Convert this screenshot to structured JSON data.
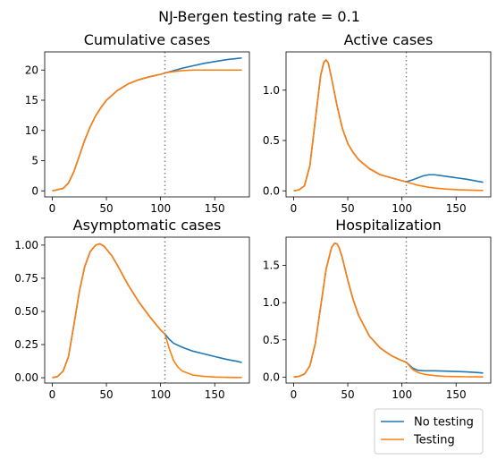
{
  "figure": {
    "suptitle": "NJ-Bergen testing rate = 0.1"
  },
  "legend": {
    "placement": "lower-right",
    "entries": [
      {
        "name": "No testing",
        "color": "#1f77b4"
      },
      {
        "name": "Testing",
        "color": "#ff7f0e"
      }
    ]
  },
  "chart_data": [
    {
      "type": "line",
      "title": "Cumulative cases",
      "xlim": [
        -7,
        182
      ],
      "ylim": [
        -1,
        23
      ],
      "xticks": [
        0,
        50,
        100,
        150
      ],
      "yticks": [
        0,
        5,
        10,
        15,
        20
      ],
      "vline": 104,
      "series": [
        {
          "name": "No testing",
          "color": "#1f77b4",
          "x": [
            0,
            10,
            15,
            20,
            25,
            30,
            35,
            40,
            45,
            50,
            60,
            70,
            80,
            90,
            100,
            104,
            110,
            120,
            130,
            140,
            150,
            160,
            170,
            175
          ],
          "y": [
            0,
            0.4,
            1.3,
            3.2,
            5.8,
            8.4,
            10.6,
            12.4,
            13.8,
            15.0,
            16.6,
            17.7,
            18.4,
            18.9,
            19.3,
            19.5,
            19.8,
            20.3,
            20.7,
            21.1,
            21.4,
            21.7,
            21.9,
            22.0
          ]
        },
        {
          "name": "Testing",
          "color": "#ff7f0e",
          "x": [
            0,
            10,
            15,
            20,
            25,
            30,
            35,
            40,
            45,
            50,
            60,
            70,
            80,
            90,
            100,
            104,
            110,
            120,
            130,
            140,
            150,
            160,
            170,
            175
          ],
          "y": [
            0,
            0.4,
            1.3,
            3.2,
            5.8,
            8.4,
            10.6,
            12.4,
            13.8,
            15.0,
            16.6,
            17.7,
            18.4,
            18.9,
            19.3,
            19.5,
            19.7,
            19.9,
            20.0,
            20.0,
            20.0,
            20.0,
            20.0,
            20.0
          ]
        }
      ]
    },
    {
      "type": "line",
      "title": "Active cases",
      "xlim": [
        -7,
        182
      ],
      "ylim": [
        -0.06,
        1.38
      ],
      "xticks": [
        0,
        50,
        100,
        150
      ],
      "yticks": [
        0.0,
        0.5,
        1.0
      ],
      "ytick_labels": [
        "0.0",
        "0.5",
        "1.0"
      ],
      "vline": 104,
      "series": [
        {
          "name": "No testing",
          "color": "#1f77b4",
          "x": [
            0,
            5,
            10,
            15,
            20,
            25,
            28,
            30,
            32,
            35,
            40,
            45,
            50,
            55,
            60,
            70,
            80,
            90,
            100,
            104,
            110,
            115,
            120,
            125,
            130,
            140,
            150,
            160,
            170,
            175
          ],
          "y": [
            0,
            0.01,
            0.05,
            0.25,
            0.7,
            1.15,
            1.28,
            1.3,
            1.27,
            1.12,
            0.85,
            0.62,
            0.47,
            0.38,
            0.31,
            0.22,
            0.16,
            0.13,
            0.1,
            0.09,
            0.11,
            0.13,
            0.15,
            0.16,
            0.16,
            0.145,
            0.13,
            0.115,
            0.095,
            0.085
          ]
        },
        {
          "name": "Testing",
          "color": "#ff7f0e",
          "x": [
            0,
            5,
            10,
            15,
            20,
            25,
            28,
            30,
            32,
            35,
            40,
            45,
            50,
            55,
            60,
            70,
            80,
            90,
            100,
            104,
            110,
            115,
            120,
            125,
            130,
            140,
            150,
            160,
            170,
            175
          ],
          "y": [
            0,
            0.01,
            0.05,
            0.25,
            0.7,
            1.15,
            1.28,
            1.3,
            1.27,
            1.12,
            0.85,
            0.62,
            0.47,
            0.38,
            0.31,
            0.22,
            0.16,
            0.13,
            0.1,
            0.09,
            0.07,
            0.055,
            0.045,
            0.035,
            0.028,
            0.018,
            0.012,
            0.008,
            0.005,
            0.004
          ]
        }
      ]
    },
    {
      "type": "line",
      "title": "Asymptomatic cases",
      "xlim": [
        -7,
        182
      ],
      "ylim": [
        -0.04,
        1.06
      ],
      "xticks": [
        0,
        50,
        100,
        150
      ],
      "yticks": [
        0.0,
        0.25,
        0.5,
        0.75,
        1.0
      ],
      "ytick_labels": [
        "0.00",
        "0.25",
        "0.50",
        "0.75",
        "1.00"
      ],
      "vline": 104,
      "series": [
        {
          "name": "No testing",
          "color": "#1f77b4",
          "x": [
            0,
            5,
            10,
            15,
            20,
            25,
            30,
            35,
            40,
            44,
            48,
            55,
            60,
            70,
            80,
            90,
            100,
            104,
            108,
            112,
            120,
            130,
            140,
            150,
            160,
            170,
            175
          ],
          "y": [
            0,
            0.01,
            0.05,
            0.16,
            0.4,
            0.65,
            0.84,
            0.95,
            1.0,
            1.01,
            0.99,
            0.92,
            0.85,
            0.7,
            0.57,
            0.46,
            0.36,
            0.33,
            0.29,
            0.26,
            0.23,
            0.2,
            0.18,
            0.16,
            0.14,
            0.125,
            0.115
          ]
        },
        {
          "name": "Testing",
          "color": "#ff7f0e",
          "x": [
            0,
            5,
            10,
            15,
            20,
            25,
            30,
            35,
            40,
            44,
            48,
            55,
            60,
            70,
            80,
            90,
            100,
            104,
            108,
            112,
            116,
            120,
            130,
            140,
            150,
            160,
            170,
            175
          ],
          "y": [
            0,
            0.01,
            0.05,
            0.16,
            0.4,
            0.65,
            0.84,
            0.95,
            1.0,
            1.01,
            0.99,
            0.92,
            0.85,
            0.7,
            0.57,
            0.46,
            0.36,
            0.33,
            0.22,
            0.13,
            0.08,
            0.05,
            0.02,
            0.01,
            0.005,
            0.003,
            0.002,
            0.002
          ]
        }
      ]
    },
    {
      "type": "line",
      "title": "Hospitalization",
      "xlim": [
        -7,
        182
      ],
      "ylim": [
        -0.08,
        1.88
      ],
      "xticks": [
        0,
        50,
        100,
        150
      ],
      "yticks": [
        0.0,
        0.5,
        1.0,
        1.5
      ],
      "ytick_labels": [
        "0.0",
        "0.5",
        "1.0",
        "1.5"
      ],
      "vline": 104,
      "series": [
        {
          "name": "No testing",
          "color": "#1f77b4",
          "x": [
            0,
            5,
            10,
            15,
            20,
            25,
            30,
            35,
            38,
            40,
            42,
            45,
            50,
            55,
            60,
            70,
            80,
            90,
            100,
            104,
            110,
            115,
            120,
            130,
            140,
            150,
            160,
            170,
            175
          ],
          "y": [
            0,
            0.01,
            0.04,
            0.15,
            0.45,
            0.95,
            1.45,
            1.74,
            1.8,
            1.79,
            1.74,
            1.6,
            1.3,
            1.04,
            0.83,
            0.55,
            0.39,
            0.29,
            0.22,
            0.2,
            0.12,
            0.09,
            0.085,
            0.085,
            0.08,
            0.075,
            0.07,
            0.06,
            0.055
          ]
        },
        {
          "name": "Testing",
          "color": "#ff7f0e",
          "x": [
            0,
            5,
            10,
            15,
            20,
            25,
            30,
            35,
            38,
            40,
            42,
            45,
            50,
            55,
            60,
            70,
            80,
            90,
            100,
            104,
            110,
            115,
            120,
            130,
            140,
            150,
            160,
            170,
            175
          ],
          "y": [
            0,
            0.01,
            0.04,
            0.15,
            0.45,
            0.95,
            1.45,
            1.74,
            1.8,
            1.79,
            1.74,
            1.6,
            1.3,
            1.04,
            0.83,
            0.55,
            0.39,
            0.29,
            0.22,
            0.2,
            0.1,
            0.06,
            0.04,
            0.02,
            0.01,
            0.006,
            0.004,
            0.003,
            0.002
          ]
        }
      ]
    }
  ]
}
